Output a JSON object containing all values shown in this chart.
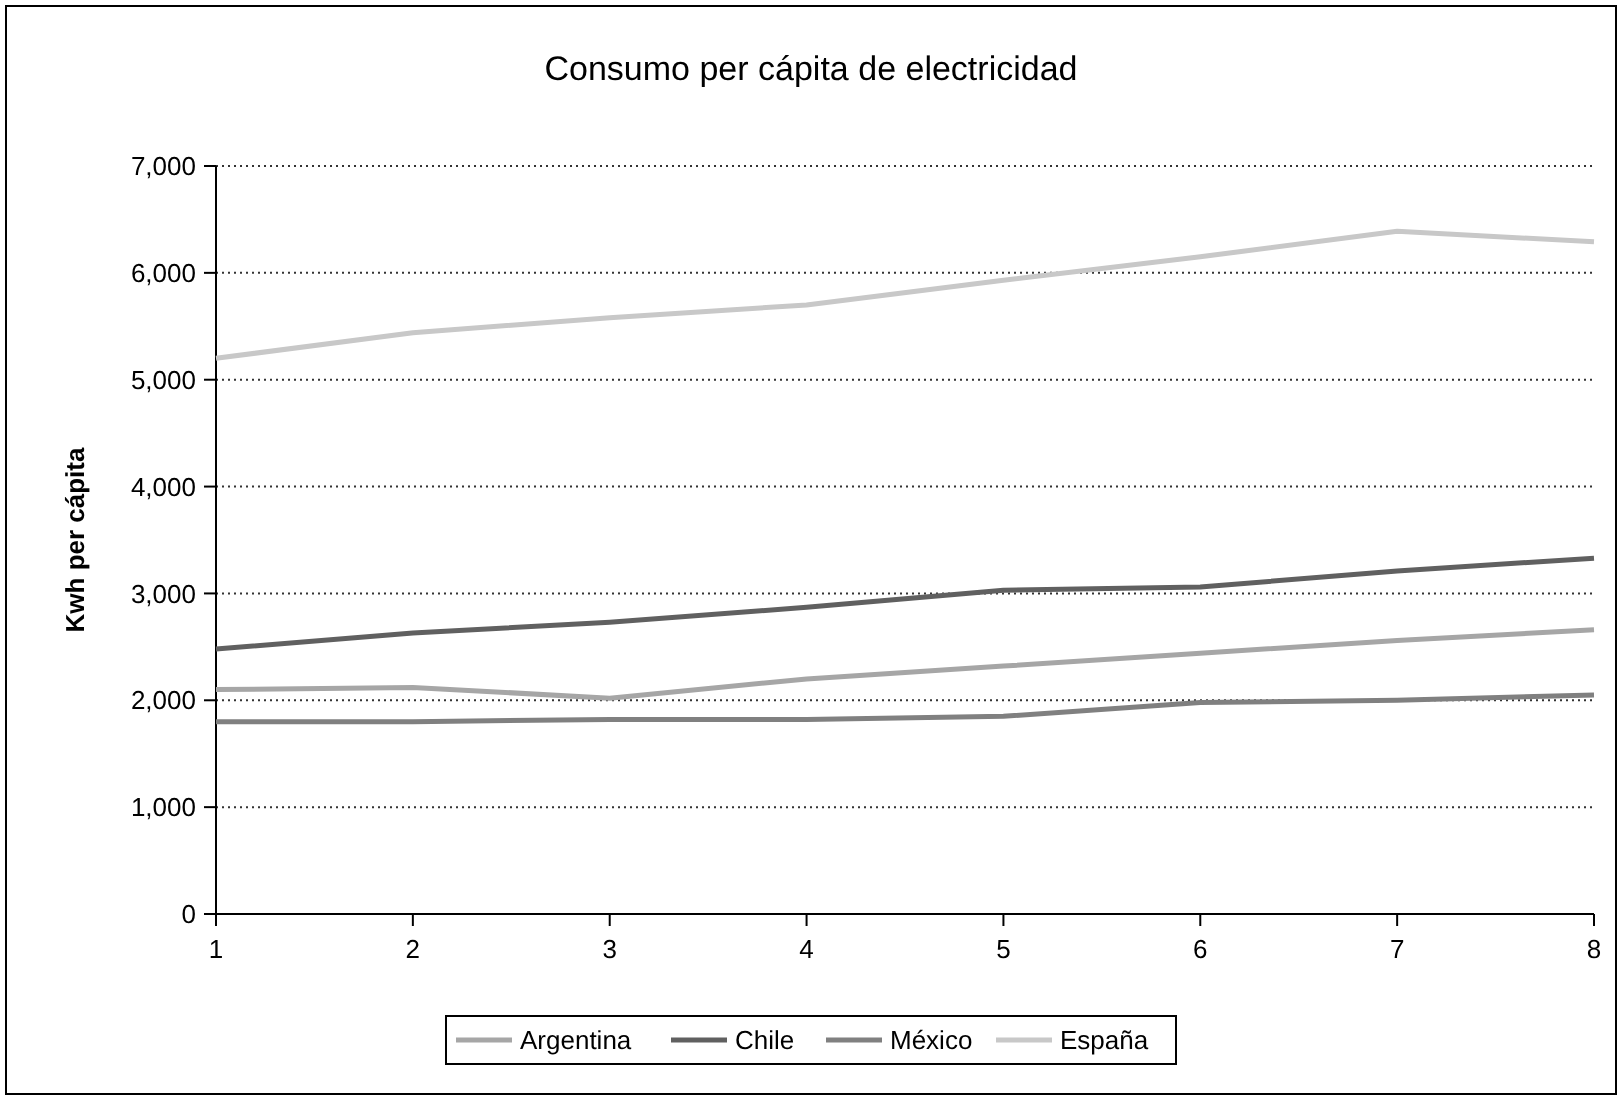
{
  "chart_data": {
    "type": "line",
    "title": "Consumo per cápita de electricidad",
    "ylabel": "Kwh per cápita",
    "x": [
      1,
      2,
      3,
      4,
      5,
      6,
      7,
      8
    ],
    "xlim": [
      1,
      8
    ],
    "xticks": [
      1,
      2,
      3,
      4,
      5,
      6,
      7,
      8
    ],
    "ylim": [
      0,
      7000
    ],
    "yticks": [
      {
        "value": 0,
        "label": "0"
      },
      {
        "value": 1000,
        "label": "1,000"
      },
      {
        "value": 2000,
        "label": "2,000"
      },
      {
        "value": 3000,
        "label": "3,000"
      },
      {
        "value": 4000,
        "label": "4,000"
      },
      {
        "value": 5000,
        "label": "5,000"
      },
      {
        "value": 6000,
        "label": "6,000"
      },
      {
        "value": 7000,
        "label": "7,000"
      }
    ],
    "grid": "y",
    "legend": "bottom",
    "marker": "none",
    "line_style": "solid",
    "series": [
      {
        "name": "Argentina",
        "color": "#a6a6a6",
        "values": [
          2100,
          2120,
          2020,
          2200,
          2320,
          2440,
          2560,
          2660
        ]
      },
      {
        "name": "Chile",
        "color": "#606060",
        "values": [
          2480,
          2630,
          2730,
          2870,
          3030,
          3060,
          3210,
          3330
        ]
      },
      {
        "name": "México",
        "color": "#808080",
        "values": [
          1800,
          1800,
          1820,
          1820,
          1850,
          1980,
          2000,
          2050
        ]
      },
      {
        "name": "España",
        "color": "#c8c8c8",
        "values": [
          5200,
          5440,
          5580,
          5700,
          5930,
          6150,
          6390,
          6290
        ]
      }
    ]
  }
}
